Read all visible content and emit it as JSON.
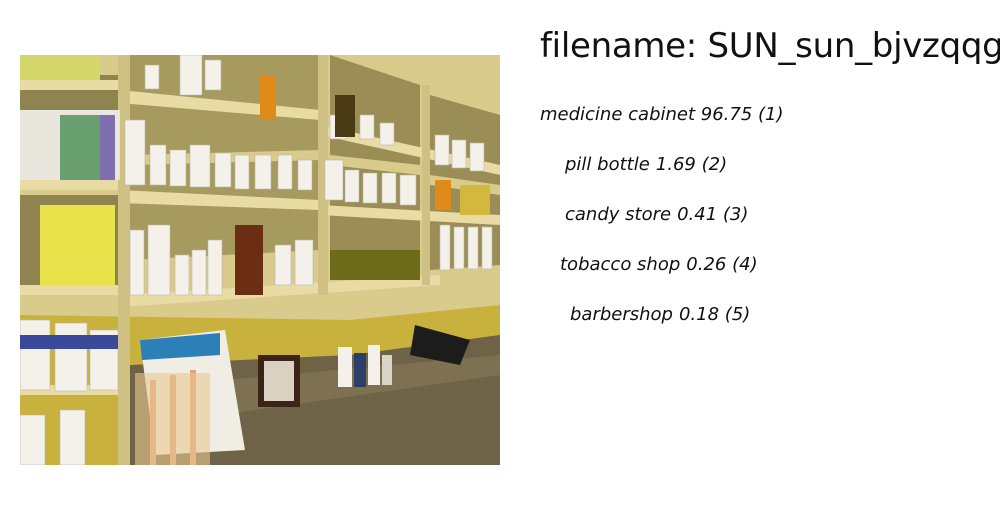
{
  "header": {
    "filename_label": "filename:",
    "filename_value": "SUN_sun_bjvzqqgv"
  },
  "photo": {
    "subject": "pharmacy shelves with pill bottles and a countertop"
  },
  "predictions": [
    {
      "label": "medicine cabinet",
      "score": "96.75",
      "rank": "(1)"
    },
    {
      "label": "pill bottle",
      "score": "1.69",
      "rank": "(2)"
    },
    {
      "label": "candy store",
      "score": "0.41",
      "rank": "(3)"
    },
    {
      "label": "tobacco shop",
      "score": "0.26",
      "rank": "(4)"
    },
    {
      "label": "barbershop",
      "score": "0.18",
      "rank": "(5)"
    }
  ],
  "colors": {
    "wall": "#c9b13e",
    "shelf": "#dccf95",
    "shelf_edge": "#b8a86a",
    "counter": "#6e6346",
    "bottle": "#f3f1ea",
    "amber": "#8a4a1e"
  }
}
